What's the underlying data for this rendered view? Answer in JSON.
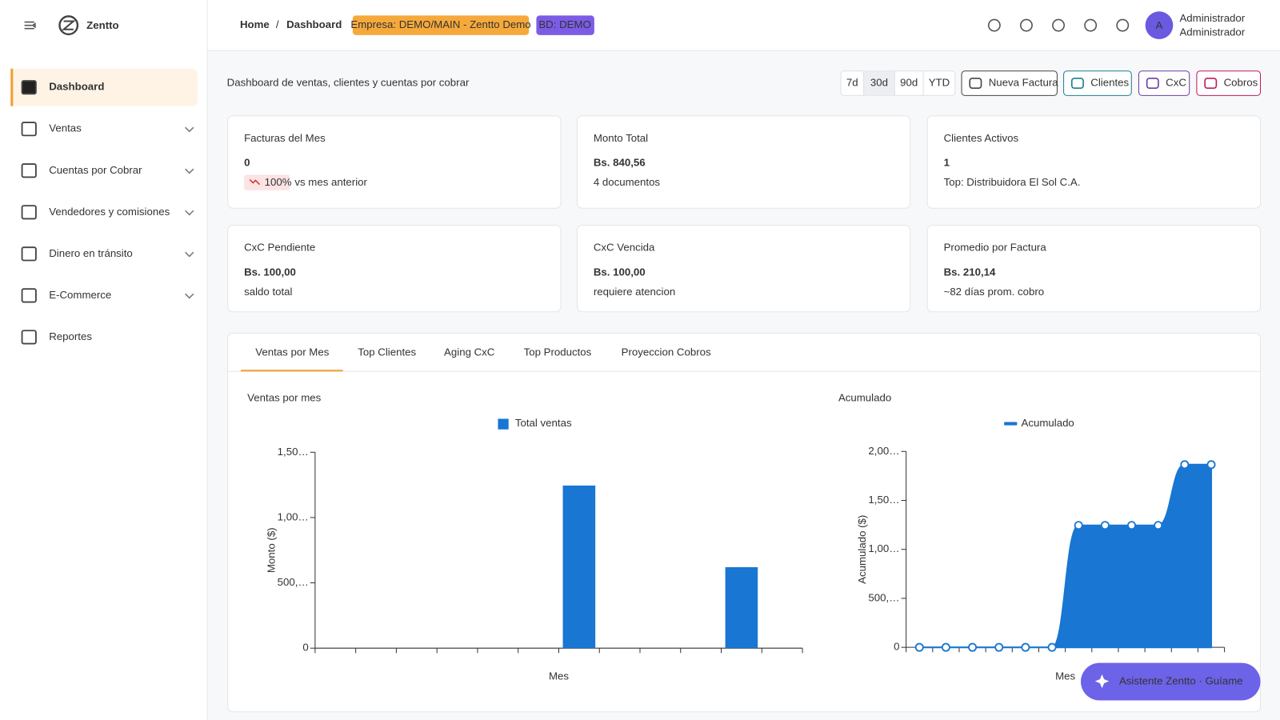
{
  "sidebar": {
    "brand": "Zentto",
    "items": [
      {
        "label": "Dashboard",
        "active": true,
        "expandable": false
      },
      {
        "label": "Ventas",
        "active": false,
        "expandable": true
      },
      {
        "label": "Cuentas por Cobrar",
        "active": false,
        "expandable": true
      },
      {
        "label": "Vendedores y comisiones",
        "active": false,
        "expandable": true
      },
      {
        "label": "Dinero en tránsito",
        "active": false,
        "expandable": true
      },
      {
        "label": "E-Commerce",
        "active": false,
        "expandable": true
      },
      {
        "label": "Reportes",
        "active": false,
        "expandable": false
      }
    ]
  },
  "header": {
    "breadcrumb": [
      "Home",
      "Dashboard"
    ],
    "separator": "/",
    "badges": [
      "Empresa: DEMO/MAIN - Zentto Demo",
      "BD: DEMO"
    ],
    "avatar": "A",
    "user": "Administrador",
    "role": "Administrador"
  },
  "toolbar": {
    "description": "Dashboard de ventas, clientes y cuentas por cobrar",
    "ranges": [
      "7d",
      "30d",
      "90d",
      "YTD"
    ],
    "active_range": 1,
    "actions": [
      "Nueva Factura",
      "Clientes",
      "CxC",
      "Cobros"
    ]
  },
  "cards": [
    {
      "title": "Facturas del Mes",
      "value": "0",
      "trend": "100%",
      "note": "vs mes anterior"
    },
    {
      "title": "Monto Total",
      "value": "Bs. 840,56",
      "note": "4 documentos"
    },
    {
      "title": "Clientes Activos",
      "value": "1",
      "note": "Top: Distribuidora El Sol C.A."
    },
    {
      "title": "CxC Pendiente",
      "value": "Bs. 100,00",
      "note": "saldo total"
    },
    {
      "title": "CxC Vencida",
      "value": "Bs. 100,00",
      "note": "requiere atencion"
    },
    {
      "title": "Promedio por Factura",
      "value": "Bs. 210,14",
      "note": "~82 días prom. cobro"
    }
  ],
  "tabs": [
    "Ventas por Mes",
    "Top Clientes",
    "Aging CxC",
    "Top Productos",
    "Proyeccion Cobros"
  ],
  "active_tab": 0,
  "chart_data": [
    {
      "type": "bar",
      "title": "Ventas por mes",
      "x_label": "Mes",
      "y_label": "Monto ($)",
      "categories": [
        null,
        null,
        null,
        null,
        null,
        null,
        null,
        null,
        null,
        null,
        null,
        null
      ],
      "series": [
        {
          "name": "Total ventas",
          "color": "#1976d2",
          "values": [
            0,
            0,
            0,
            0,
            0,
            0,
            1245,
            0,
            0,
            0,
            620,
            0
          ]
        }
      ],
      "ylim": [
        0,
        1500
      ],
      "yticks": [
        0,
        {
          "value": 500,
          "label": "500,…"
        },
        {
          "value": 1000,
          "label": "1,00…"
        },
        {
          "value": 1500,
          "label": "1,50…"
        }
      ]
    },
    {
      "type": "area",
      "title": "Acumulado",
      "x_label": "Mes",
      "y_label": "Acumulado ($)",
      "categories": [
        null,
        null,
        null,
        null,
        null,
        null,
        null,
        null,
        null,
        null,
        null,
        null
      ],
      "series": [
        {
          "name": "Acumulado",
          "color": "#1976d2",
          "values": [
            0,
            0,
            0,
            0,
            0,
            0,
            1245,
            1245,
            1245,
            1245,
            1865,
            1865
          ]
        }
      ],
      "ylim": [
        0,
        2000
      ],
      "yticks": [
        0,
        {
          "value": 500,
          "label": "500,…"
        },
        {
          "value": 1000,
          "label": "1,00…"
        },
        {
          "value": 1500,
          "label": "1,50…"
        },
        {
          "value": 2000,
          "label": "2,00…"
        }
      ]
    }
  ],
  "assistant": "Asistente Zentto · Guíame"
}
